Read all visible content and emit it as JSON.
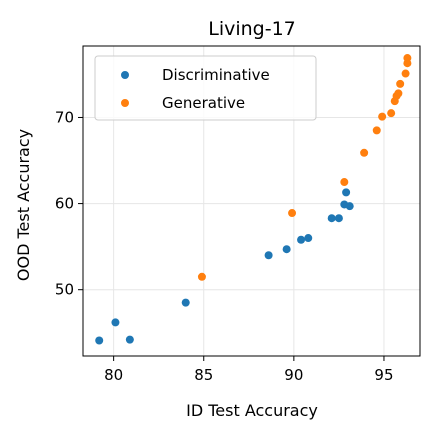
{
  "chart_data": {
    "type": "scatter",
    "title": "Living-17",
    "xlabel": "ID Test Accuracy",
    "ylabel": "OOD Test Accuracy",
    "xlim": [
      78.3,
      97.0
    ],
    "ylim": [
      42.3,
      78.3
    ],
    "xticks": [
      80,
      85,
      90,
      95
    ],
    "yticks": [
      50,
      60,
      70
    ],
    "grid": true,
    "legend_position": "top-left",
    "series": [
      {
        "name": "Discriminative",
        "color": "#1f77b4",
        "points": [
          [
            79.2,
            44.1
          ],
          [
            80.1,
            46.2
          ],
          [
            80.9,
            44.2
          ],
          [
            84.0,
            48.5
          ],
          [
            88.6,
            54.0
          ],
          [
            89.6,
            54.7
          ],
          [
            90.4,
            55.8
          ],
          [
            90.8,
            56.0
          ],
          [
            92.1,
            58.3
          ],
          [
            92.5,
            58.3
          ],
          [
            92.8,
            59.9
          ],
          [
            92.9,
            61.3
          ],
          [
            93.1,
            59.7
          ]
        ]
      },
      {
        "name": "Generative",
        "color": "#ff7f0e",
        "points": [
          [
            84.9,
            51.5
          ],
          [
            89.9,
            58.9
          ],
          [
            92.8,
            62.5
          ],
          [
            93.9,
            65.9
          ],
          [
            94.6,
            68.5
          ],
          [
            94.9,
            70.1
          ],
          [
            95.4,
            70.5
          ],
          [
            95.6,
            71.9
          ],
          [
            95.7,
            72.5
          ],
          [
            95.8,
            72.8
          ],
          [
            95.9,
            73.9
          ],
          [
            96.2,
            75.1
          ],
          [
            96.3,
            76.3
          ],
          [
            96.3,
            76.9
          ]
        ]
      }
    ]
  }
}
